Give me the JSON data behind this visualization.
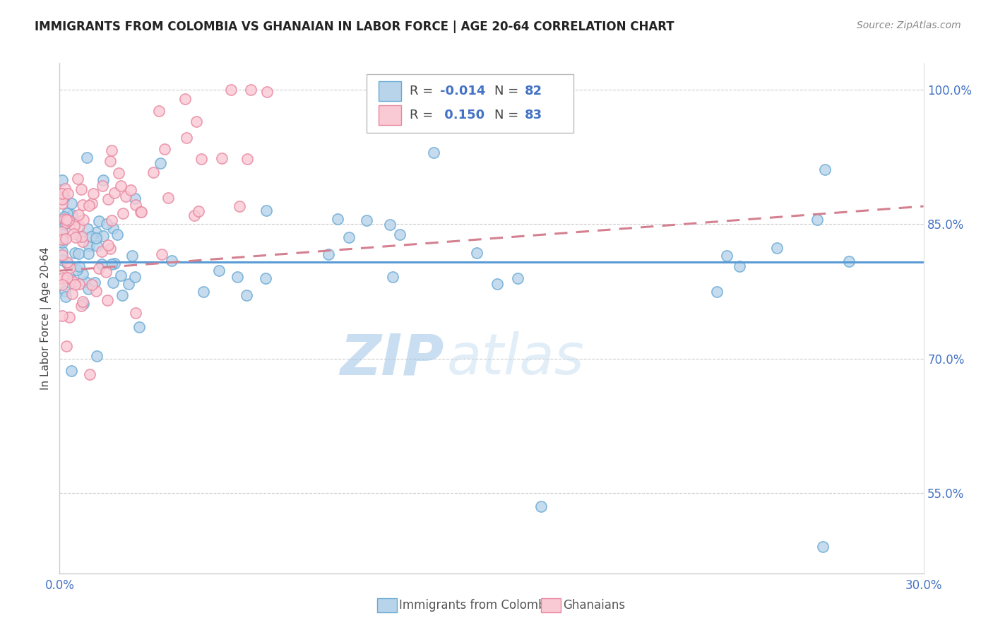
{
  "title": "IMMIGRANTS FROM COLOMBIA VS GHANAIAN IN LABOR FORCE | AGE 20-64 CORRELATION CHART",
  "source": "Source: ZipAtlas.com",
  "ylabel": "In Labor Force | Age 20-64",
  "colombia_color": "#b8d4ea",
  "colombia_edge": "#6aaad4",
  "ghana_color": "#f9c9d4",
  "ghana_edge": "#e888a0",
  "colombia_R": -0.014,
  "colombia_N": 82,
  "ghana_R": 0.15,
  "ghana_N": 83,
  "trend_blue": "#5b9bd5",
  "trend_pink": "#d48090",
  "watermark_zip": "ZIP",
  "watermark_atlas": "atlas",
  "xlim": [
    0.0,
    0.3
  ],
  "ylim": [
    0.46,
    1.03
  ],
  "ytick_values": [
    1.0,
    0.85,
    0.7,
    0.55
  ],
  "ytick_labels": [
    "100.0%",
    "85.0%",
    "70.0%",
    "55.0%"
  ],
  "xtick_values": [
    0.0,
    0.3
  ],
  "xtick_labels": [
    "0.0%",
    "30.0%"
  ],
  "legend_color": "#4472c4",
  "col_seed": 17,
  "gha_seed": 99
}
